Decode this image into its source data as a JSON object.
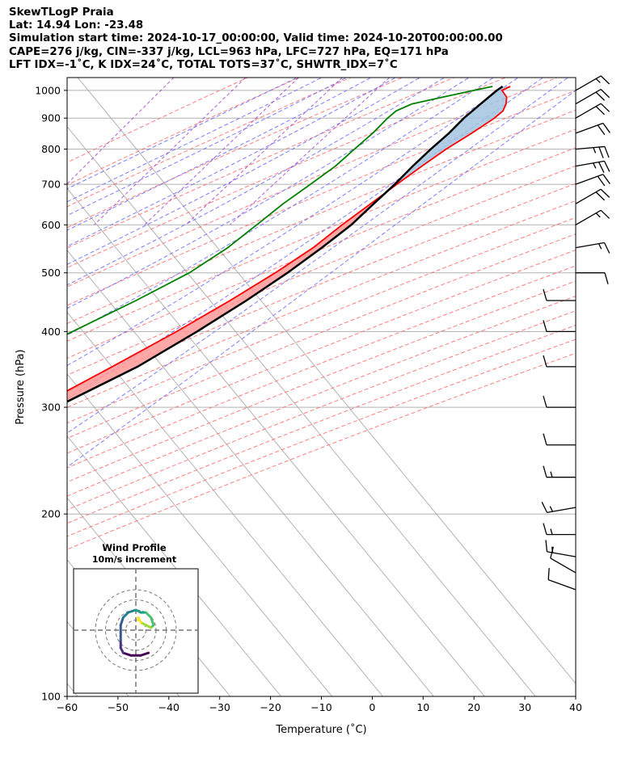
{
  "header": {
    "line1": "SkewTLogP Praia",
    "line2": "Lat: 14.94   Lon: -23.48",
    "line3": "Simulation start time: 2024-10-17_00:00:00, Valid time: 2024-10-20T00:00:00.00",
    "line4": "CAPE=276 j/kg, CIN=-337 j/kg, LCL=963 hPa, LFC=727 hPa, EQ=171 hPa",
    "line5": "LFT IDX=-1˚C, K IDX=24˚C, TOTAL TOTS=37˚C, SHWTR_IDX=7˚C"
  },
  "chart_data": {
    "type": "skewt",
    "xlabel": "Temperature (˚C)",
    "ylabel": "Pressure (hPa)",
    "xlim": [
      -60,
      40
    ],
    "ylim": [
      1050,
      100
    ],
    "x_ticks": [
      "−60",
      "−50",
      "−40",
      "−30",
      "−20",
      "−10",
      "0",
      "10",
      "20",
      "30",
      "40"
    ],
    "y_ticks": [
      "100",
      "200",
      "300",
      "400",
      "500",
      "600",
      "700",
      "800",
      "900",
      "1000"
    ],
    "skew_reference_hPa": 1000,
    "colors": {
      "temperature": "#ff0000",
      "dewpoint": "#008000",
      "parcel": "#000000",
      "cape_fill": "#ff9999",
      "cin_fill": "#a2c4e0",
      "dry_adiabats": "#ff6666",
      "moist_adiabats": "#6666ff",
      "mixing_ratio": "#9933cc",
      "isotherms": "#aaaaaa"
    },
    "temperature": [
      [
        1015,
        26.5
      ],
      [
        1000,
        25.5
      ],
      [
        975,
        27.5
      ],
      [
        950,
        28.5
      ],
      [
        925,
        29.0
      ],
      [
        900,
        28.5
      ],
      [
        850,
        26.5
      ],
      [
        800,
        24.0
      ],
      [
        750,
        22.0
      ],
      [
        700,
        20.0
      ],
      [
        650,
        18.0
      ],
      [
        600,
        15.8
      ],
      [
        550,
        13.8
      ],
      [
        500,
        10.4
      ],
      [
        450,
        6.0
      ],
      [
        400,
        0.5
      ],
      [
        350,
        -6.5
      ],
      [
        300,
        -14.8
      ],
      [
        250,
        -26.0
      ],
      [
        200,
        -38.5
      ],
      [
        175,
        -44.5
      ],
      [
        150,
        -48.0
      ],
      [
        130,
        -53.5
      ],
      [
        115,
        -56.5
      ],
      [
        100,
        -62.5
      ]
    ],
    "dewpoint": [
      [
        1015,
        23.0
      ],
      [
        1000,
        20.0
      ],
      [
        975,
        15.0
      ],
      [
        950,
        10.0
      ],
      [
        925,
        8.0
      ],
      [
        900,
        7.5
      ],
      [
        850,
        7.0
      ],
      [
        800,
        6.0
      ],
      [
        775,
        5.5
      ],
      [
        750,
        5.0
      ],
      [
        700,
        3.0
      ],
      [
        650,
        0.8
      ],
      [
        600,
        -1.0
      ],
      [
        550,
        -3.0
      ],
      [
        500,
        -6.5
      ],
      [
        450,
        -12.5
      ],
      [
        400,
        -20.0
      ],
      [
        350,
        -28.0
      ],
      [
        300,
        -37.5
      ],
      [
        270,
        -46.0
      ],
      [
        255,
        -53.0
      ],
      [
        240,
        -52.0
      ],
      [
        215,
        -54.0
      ],
      [
        200,
        -58.0
      ],
      [
        175,
        -62.0
      ],
      [
        160,
        -65.0
      ],
      [
        150,
        -67.0
      ],
      [
        130,
        -67.5
      ],
      [
        115,
        -68.5
      ],
      [
        100,
        -72.0
      ]
    ],
    "parcel": [
      [
        1015,
        25.0
      ],
      [
        1000,
        24.5
      ],
      [
        975,
        24.0
      ],
      [
        950,
        23.5
      ],
      [
        925,
        23.0
      ],
      [
        900,
        22.5
      ],
      [
        850,
        22.0
      ],
      [
        800,
        21.0
      ],
      [
        750,
        20.2
      ],
      [
        700,
        19.6
      ],
      [
        650,
        18.6
      ],
      [
        600,
        17.6
      ],
      [
        550,
        15.5
      ],
      [
        500,
        12.8
      ],
      [
        450,
        9.2
      ],
      [
        400,
        4.5
      ],
      [
        350,
        -1.5
      ],
      [
        300,
        -11.0
      ],
      [
        250,
        -23.5
      ],
      [
        200,
        -37.0
      ],
      [
        175,
        -44.5
      ],
      [
        150,
        -53.0
      ],
      [
        125,
        -63.5
      ],
      [
        100,
        -74.0
      ]
    ],
    "wind_barbs": [
      {
        "p": 150,
        "speed_kt": 10,
        "dir": 290
      },
      {
        "p": 160,
        "speed_kt": 10,
        "dir": 300
      },
      {
        "p": 170,
        "speed_kt": 15,
        "dir": 280
      },
      {
        "p": 185,
        "speed_kt": 15,
        "dir": 270
      },
      {
        "p": 205,
        "speed_kt": 15,
        "dir": 260
      },
      {
        "p": 230,
        "speed_kt": 15,
        "dir": 270
      },
      {
        "p": 260,
        "speed_kt": 10,
        "dir": 270
      },
      {
        "p": 300,
        "speed_kt": 10,
        "dir": 270
      },
      {
        "p": 350,
        "speed_kt": 10,
        "dir": 270
      },
      {
        "p": 400,
        "speed_kt": 10,
        "dir": 270
      },
      {
        "p": 450,
        "speed_kt": 10,
        "dir": 270
      },
      {
        "p": 500,
        "speed_kt": 10,
        "dir": 90
      },
      {
        "p": 550,
        "speed_kt": 15,
        "dir": 80
      },
      {
        "p": 600,
        "speed_kt": 15,
        "dir": 60
      },
      {
        "p": 650,
        "speed_kt": 20,
        "dir": 60
      },
      {
        "p": 700,
        "speed_kt": 20,
        "dir": 70
      },
      {
        "p": 750,
        "speed_kt": 25,
        "dir": 80
      },
      {
        "p": 800,
        "speed_kt": 25,
        "dir": 85
      },
      {
        "p": 850,
        "speed_kt": 20,
        "dir": 70
      },
      {
        "p": 900,
        "speed_kt": 20,
        "dir": 60
      },
      {
        "p": 950,
        "speed_kt": 20,
        "dir": 60
      },
      {
        "p": 1000,
        "speed_kt": 15,
        "dir": 60
      }
    ],
    "hodograph": {
      "title": "Wind Profile",
      "subtitle": "10m/s increment",
      "ring_step_ms": 10,
      "ring_count": 4,
      "u": [
        5,
        2,
        -2,
        -5,
        -6,
        -6,
        -6,
        -6,
        -5,
        -3,
        0,
        2,
        4,
        6,
        7,
        6,
        4,
        2,
        1,
        1
      ],
      "v": [
        -9,
        -10,
        -10,
        -9,
        -7,
        -4,
        -1,
        2,
        5,
        7,
        8,
        7,
        7,
        5,
        2,
        1,
        2,
        3,
        5,
        4
      ]
    }
  }
}
